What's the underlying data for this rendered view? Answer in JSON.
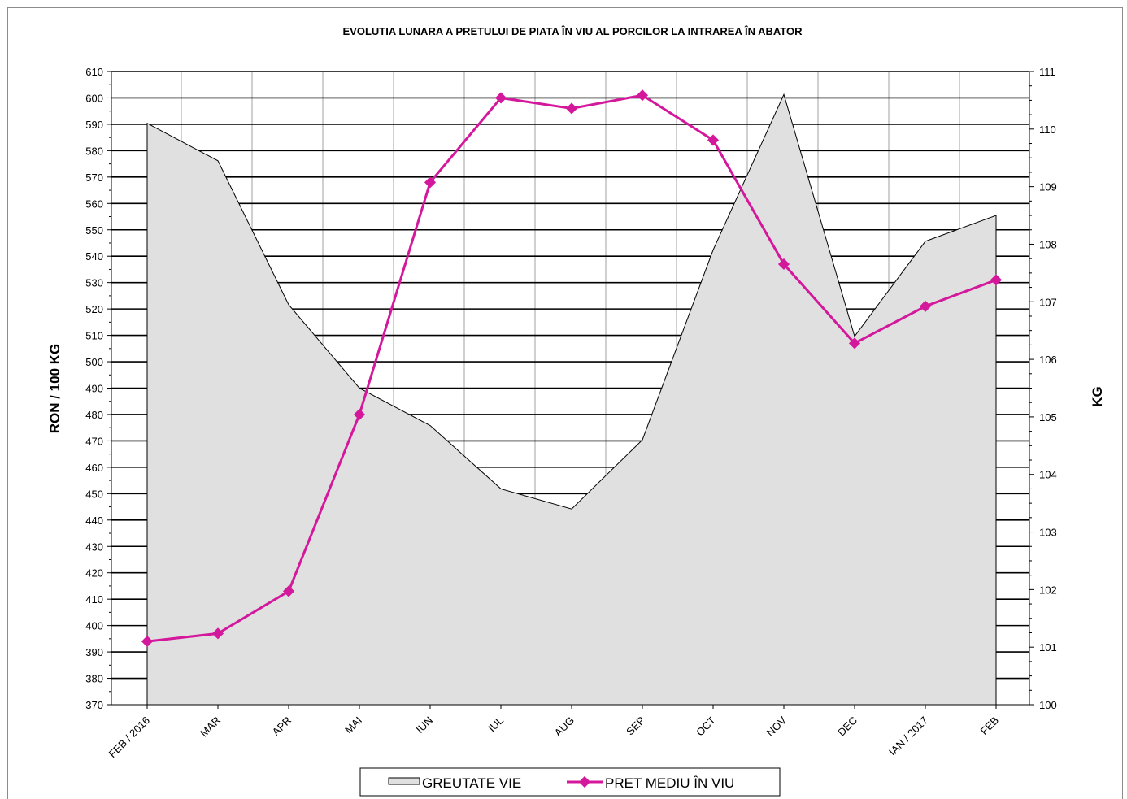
{
  "chart_data": {
    "type": "line",
    "title": "EVOLUTIA LUNARA A PRETULUI  DE PIATA  ÎN VIU AL PORCILOR  LA INTRAREA ÎN ABATOR",
    "categories": [
      "FEB / 2016",
      "MAR",
      "APR",
      "MAI",
      "IUN",
      "IUL",
      "AUG",
      "SEP",
      "OCT",
      "NOV",
      "DEC",
      "IAN / 2017",
      "FEB"
    ],
    "ylabel": "RON / 100 KG",
    "y2label": "KG",
    "ylim": [
      370,
      610
    ],
    "y2lim": [
      100,
      111
    ],
    "grid": true,
    "legend_position": "bottom",
    "series": [
      {
        "name": "GREUTATE VIE",
        "type": "area",
        "axis": "right",
        "color": "#e0e0e0",
        "values": [
          110.1,
          109.45,
          106.95,
          105.5,
          104.85,
          103.75,
          103.4,
          104.6,
          107.9,
          110.6,
          106.4,
          108.05,
          108.5
        ]
      },
      {
        "name": "PRET MEDIU ÎN VIU",
        "type": "line",
        "axis": "left",
        "color": "#d4189c",
        "values": [
          394,
          397,
          413,
          480,
          568,
          600,
          596,
          601,
          584,
          537,
          507,
          521,
          531
        ]
      }
    ]
  }
}
